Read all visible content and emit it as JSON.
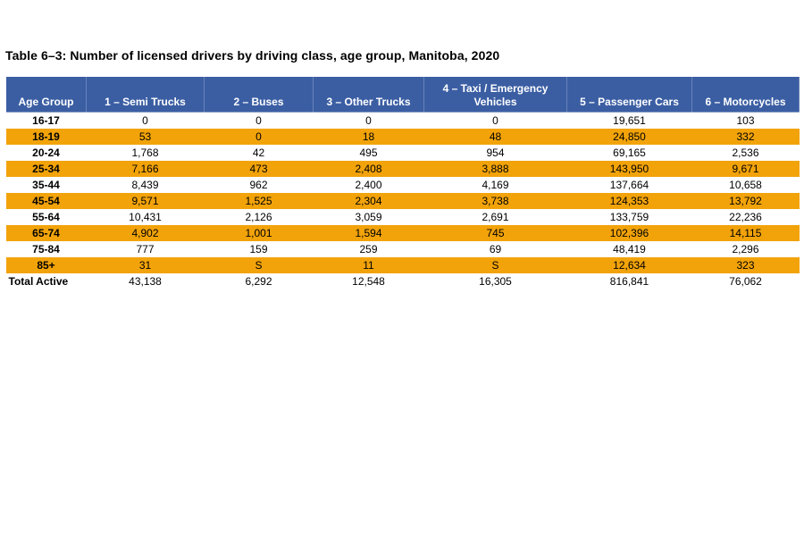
{
  "title": "Table 6–3: Number of licensed drivers by driving class, age group, Manitoba, 2020",
  "colors": {
    "header_bg": "#3B5EA3",
    "header_text": "#FFFFFF",
    "stripe_bg": "#F2A30A",
    "row_bg": "#FFFFFF",
    "body_text": "#000000"
  },
  "table": {
    "headers": [
      "Age Group",
      "1 – Semi Trucks",
      "2 – Buses",
      "3 – Other Trucks",
      "4 – Taxi / Emergency\nVehicles",
      "5 – Passenger Cars",
      "6 – Motorcycles"
    ],
    "suppressed_marker": "S",
    "rows": [
      {
        "cells": [
          "16-17",
          "0",
          "0",
          "0",
          "0",
          "19,651",
          "103"
        ],
        "highlight": false
      },
      {
        "cells": [
          "18-19",
          "53",
          "0",
          "18",
          "48",
          "24,850",
          "332"
        ],
        "highlight": true
      },
      {
        "cells": [
          "20-24",
          "1,768",
          "42",
          "495",
          "954",
          "69,165",
          "2,536"
        ],
        "highlight": false
      },
      {
        "cells": [
          "25-34",
          "7,166",
          "473",
          "2,408",
          "3,888",
          "143,950",
          "9,671"
        ],
        "highlight": true
      },
      {
        "cells": [
          "35-44",
          "8,439",
          "962",
          "2,400",
          "4,169",
          "137,664",
          "10,658"
        ],
        "highlight": false
      },
      {
        "cells": [
          "45-54",
          "9,571",
          "1,525",
          "2,304",
          "3,738",
          "124,353",
          "13,792"
        ],
        "highlight": true
      },
      {
        "cells": [
          "55-64",
          "10,431",
          "2,126",
          "3,059",
          "2,691",
          "133,759",
          "22,236"
        ],
        "highlight": false
      },
      {
        "cells": [
          "65-74",
          "4,902",
          "1,001",
          "1,594",
          "745",
          "102,396",
          "14,115"
        ],
        "highlight": true
      },
      {
        "cells": [
          "75-84",
          "777",
          "159",
          "259",
          "69",
          "48,419",
          "2,296"
        ],
        "highlight": false
      },
      {
        "cells": [
          "85+",
          "31",
          "S",
          "11",
          "S",
          "12,634",
          "323"
        ],
        "highlight": true
      },
      {
        "cells": [
          "Total Active",
          "43,138",
          "6,292",
          "12,548",
          "16,305",
          "816,841",
          "76,062"
        ],
        "highlight": false,
        "total": true
      }
    ]
  }
}
